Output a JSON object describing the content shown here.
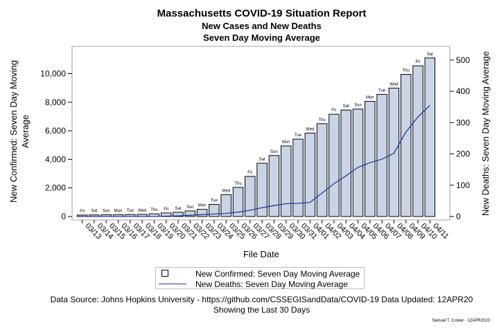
{
  "title": "Massachusetts COVID-19 Situation Report",
  "subtitle1": "New Cases and New Deaths",
  "subtitle2": "Seven Day Moving Average",
  "source": "Data Source: Johns Hopkins University - https://github.com/CSSEGISandData/COVID-19  Data Updated: 12APR20",
  "period": "Showing the Last 30 Days",
  "signature": "Samuel T. Croker - 12APR2020",
  "legend": {
    "cases": "New Confirmed: Seven Day Moving Average",
    "deaths": "New Deaths: Seven Day Moving Average"
  },
  "colors": {
    "bar_fill": "#c9d5e6",
    "bar_edge": "#000000",
    "line": "#1f3c99"
  },
  "chart_data": {
    "type": "bar",
    "title": "Massachusetts COVID-19 Situation Report",
    "xlabel": "File Date",
    "ylabel": "New Confirmed: Seven Day Moving Average",
    "y2label": "New Deaths: Seven Day Moving Average",
    "ylim": [
      0,
      11500
    ],
    "y2lim": [
      0,
      525
    ],
    "yticks": [
      0,
      2000,
      4000,
      6000,
      8000,
      10000
    ],
    "ytick_labels": [
      "0",
      "2,000",
      "4,000",
      "6,000",
      "8,000",
      "10,000"
    ],
    "y2ticks": [
      0,
      100,
      200,
      300,
      400,
      500
    ],
    "y2tick_labels": [
      "0",
      "100",
      "200",
      "300",
      "400",
      "500"
    ],
    "grid": false,
    "categories": [
      "03/13",
      "03/14",
      "03/15",
      "03/16",
      "03/17",
      "03/18",
      "03/19",
      "03/20",
      "03/21",
      "03/22",
      "03/23",
      "03/24",
      "03/25",
      "03/26",
      "03/27",
      "03/28",
      "03/29",
      "03/30",
      "03/31",
      "04/01",
      "04/02",
      "04/03",
      "04/04",
      "04/05",
      "04/06",
      "04/07",
      "04/08",
      "04/09",
      "04/10",
      "04/11"
    ],
    "weekdays": [
      "Fri",
      "Sat",
      "Sun",
      "Mon",
      "Tue",
      "Wed",
      "Thu",
      "Fri",
      "Sat",
      "Sun",
      "Mon",
      "Tue",
      "Wed",
      "Thu",
      "Fri",
      "Sat",
      "Sun",
      "Mon",
      "Tue",
      "Wed",
      "Thu",
      "Fri",
      "Sat",
      "Sun",
      "Mon",
      "Tue",
      "Wed",
      "Thu",
      "Fri",
      "Sat"
    ],
    "series": [
      {
        "name": "New Confirmed: Seven Day Moving Average",
        "type": "bar",
        "axis": "left",
        "values": [
          100,
          110,
          120,
          130,
          140,
          150,
          190,
          250,
          300,
          390,
          500,
          850,
          1530,
          2040,
          2810,
          3730,
          4270,
          4940,
          5420,
          5840,
          6500,
          7160,
          7450,
          7520,
          8060,
          8550,
          8990,
          9950,
          10550,
          11100
        ]
      },
      {
        "name": "New Deaths: Seven Day Moving Average",
        "type": "line",
        "axis": "right",
        "values": [
          0,
          0,
          0,
          0,
          0,
          0,
          0,
          1,
          2,
          4,
          6,
          8,
          10,
          14,
          20,
          28,
          35,
          41,
          42,
          45,
          75,
          105,
          130,
          157,
          172,
          183,
          202,
          270,
          318,
          355
        ]
      }
    ]
  }
}
